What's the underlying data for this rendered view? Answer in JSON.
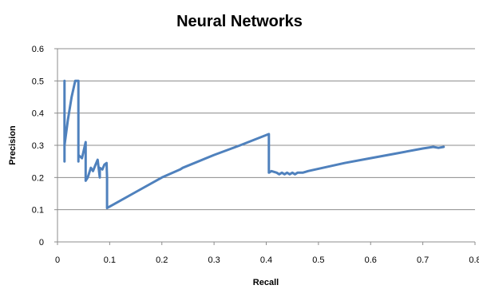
{
  "chart_data": {
    "type": "line",
    "title": "Neural Networks",
    "xlabel": "Recall",
    "ylabel": "Precision",
    "xlim": [
      0,
      0.8
    ],
    "ylim": [
      0,
      0.6
    ],
    "xticks": [
      "0",
      "0.1",
      "0.2",
      "0.3",
      "0.4",
      "0.5",
      "0.6",
      "0.7",
      "0.8"
    ],
    "yticks": [
      "0",
      "0.1",
      "0.2",
      "0.3",
      "0.4",
      "0.5",
      "0.6"
    ],
    "grid": "horizontal",
    "legend": "none",
    "series_color": "#4f81bd",
    "series": [
      {
        "x": [
          0.0135,
          0.0135,
          0.0135,
          0.02,
          0.027,
          0.034,
          0.04,
          0.04,
          0.04,
          0.047,
          0.054,
          0.054,
          0.054,
          0.058,
          0.064,
          0.068,
          0.073,
          0.077,
          0.081,
          0.081,
          0.086,
          0.09,
          0.094,
          0.095,
          0.095,
          0.15,
          0.2,
          0.235,
          0.24,
          0.3,
          0.35,
          0.405,
          0.405,
          0.41,
          0.42,
          0.425,
          0.43,
          0.435,
          0.44,
          0.445,
          0.45,
          0.455,
          0.46,
          0.47,
          0.48,
          0.55,
          0.6,
          0.65,
          0.7,
          0.72,
          0.73,
          0.74
        ],
        "y": [
          0.5,
          0.25,
          0.3,
          0.38,
          0.45,
          0.5,
          0.5,
          0.25,
          0.27,
          0.26,
          0.31,
          0.19,
          0.19,
          0.2,
          0.23,
          0.22,
          0.24,
          0.255,
          0.2,
          0.23,
          0.225,
          0.24,
          0.245,
          0.2,
          0.105,
          0.155,
          0.2,
          0.225,
          0.23,
          0.27,
          0.3,
          0.335,
          0.215,
          0.22,
          0.215,
          0.21,
          0.215,
          0.21,
          0.215,
          0.21,
          0.215,
          0.21,
          0.215,
          0.215,
          0.22,
          0.245,
          0.26,
          0.275,
          0.29,
          0.295,
          0.292,
          0.295
        ]
      }
    ]
  }
}
